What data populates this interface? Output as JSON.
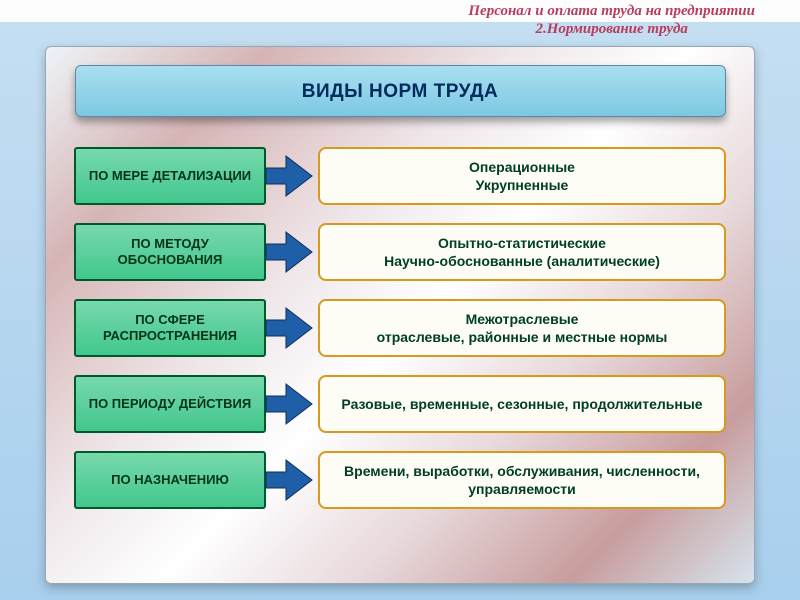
{
  "header": {
    "line1": "Персонал и оплата труда на предприятии",
    "line2": "2.Нормирование труда"
  },
  "title": "ВИДЫ НОРМ ТРУДА",
  "rows": [
    {
      "category": "ПО МЕРЕ ДЕТАЛИЗАЦИИ",
      "detail": "Операционные<br>Укрупненные"
    },
    {
      "category": "ПО МЕТОДУ ОБОСНОВАНИЯ",
      "detail": "Опытно-статистические<br>Научно-обоснованные (аналитические)"
    },
    {
      "category": "ПО СФЕРЕ РАСПРОСТРАНЕНИЯ",
      "detail": "Межотраслевые<br>отраслевые, районные и местные нормы"
    },
    {
      "category": "ПО ПЕРИОДУ ДЕЙСТВИЯ",
      "detail": "Разовые, временные, сезонные, продолжительные"
    },
    {
      "category": "ПО НАЗНАЧЕНИЮ",
      "detail": "Времени, выработки, обслуживания, численности, управляемости"
    }
  ],
  "style": {
    "arrow_fill": "#1f5fa8",
    "arrow_stroke": "#0d2f55",
    "category_height": 58
  }
}
